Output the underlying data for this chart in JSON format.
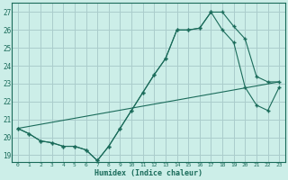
{
  "xlabel": "Humidex (Indice chaleur)",
  "background_color": "#cceee8",
  "grid_color": "#aacccc",
  "line_color": "#1a6b5a",
  "xlim": [
    -0.5,
    23.5
  ],
  "ylim": [
    18.6,
    27.5
  ],
  "xticks": [
    0,
    1,
    2,
    3,
    4,
    5,
    6,
    7,
    8,
    9,
    10,
    11,
    12,
    13,
    14,
    15,
    16,
    17,
    18,
    19,
    20,
    21,
    22,
    23
  ],
  "yticks": [
    19,
    20,
    21,
    22,
    23,
    24,
    25,
    26,
    27
  ],
  "series": [
    {
      "x": [
        0,
        1,
        2,
        3,
        4,
        5,
        6,
        7,
        8,
        9,
        10,
        11,
        12,
        13,
        14,
        15,
        16,
        17,
        18,
        19,
        20,
        21,
        22,
        23
      ],
      "y": [
        20.5,
        20.2,
        19.8,
        19.7,
        19.5,
        19.5,
        19.3,
        18.7,
        19.5,
        20.5,
        21.5,
        22.5,
        23.5,
        24.4,
        26.0,
        26.0,
        26.1,
        27.0,
        27.0,
        26.2,
        25.5,
        23.4,
        23.1,
        23.1
      ],
      "marker": "+"
    },
    {
      "x": [
        0,
        1,
        2,
        3,
        4,
        5,
        6,
        7,
        8,
        9,
        10,
        11,
        12,
        13,
        14,
        15,
        16,
        17,
        18,
        19,
        20,
        21,
        22,
        23
      ],
      "y": [
        20.5,
        20.2,
        19.8,
        19.7,
        19.5,
        19.5,
        19.3,
        18.7,
        19.5,
        20.5,
        21.5,
        22.5,
        23.5,
        24.4,
        26.0,
        26.0,
        26.1,
        27.0,
        26.0,
        25.3,
        22.8,
        21.8,
        21.5,
        22.8
      ],
      "marker": "+"
    },
    {
      "x": [
        0,
        23
      ],
      "y": [
        20.5,
        23.1
      ],
      "marker": null
    }
  ]
}
